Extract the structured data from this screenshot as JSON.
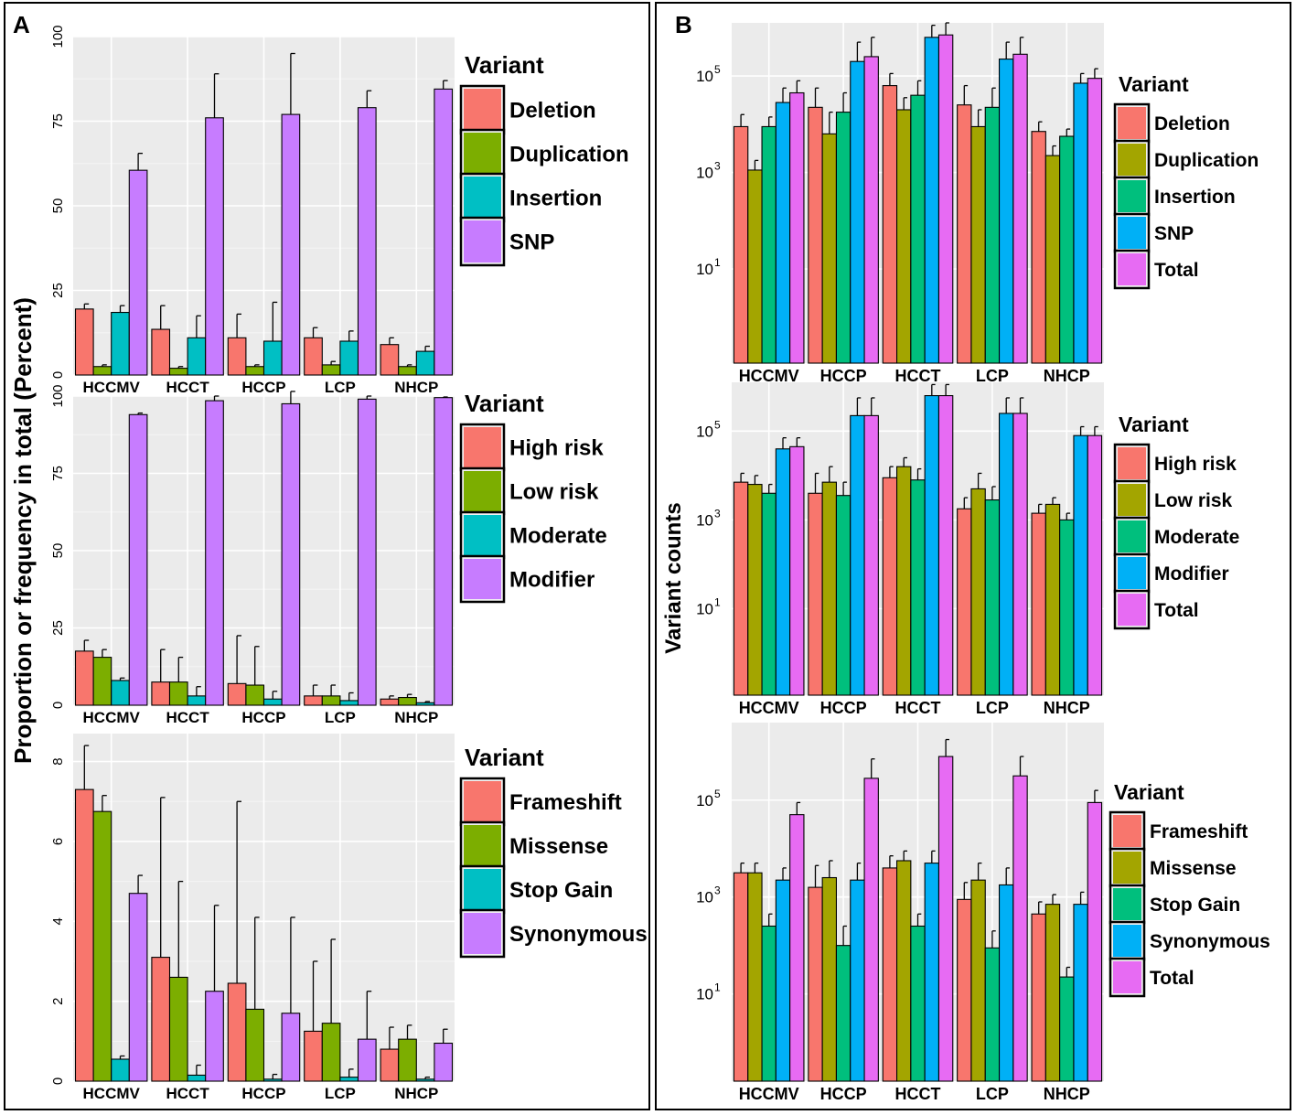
{
  "panels": [
    {
      "label": "A",
      "ylabel": "Proportion or frequency in total (Percent)"
    },
    {
      "label": "B",
      "ylabel": "Variant counts"
    }
  ],
  "chart_data": [
    {
      "id": "A1",
      "panel": "A",
      "type": "bar",
      "scale": "linear",
      "categories": [
        "HCCMV",
        "HCCT",
        "HCCP",
        "LCP",
        "NHCP"
      ],
      "ylim": [
        0,
        100
      ],
      "yticks": [
        0,
        25,
        50,
        75,
        100
      ],
      "legend_title": "Variant",
      "series": [
        {
          "name": "Deletion",
          "color": "#F8766D",
          "values": [
            19.5,
            13.5,
            11,
            11,
            9
          ],
          "errors": [
            1.5,
            7,
            7,
            3,
            2
          ]
        },
        {
          "name": "Duplication",
          "color": "#7CAE00",
          "values": [
            2.5,
            2,
            2.5,
            3,
            2.5
          ],
          "errors": [
            0.5,
            0.5,
            0.5,
            1,
            0.5
          ]
        },
        {
          "name": "Insertion",
          "color": "#00BFC4",
          "values": [
            18.5,
            11,
            10,
            10,
            7
          ],
          "errors": [
            2,
            6.5,
            11.5,
            3,
            1.5
          ]
        },
        {
          "name": "SNP",
          "color": "#C77CFF",
          "values": [
            60.5,
            76,
            77,
            79,
            84.5
          ],
          "errors": [
            5,
            13,
            18,
            5,
            2.5
          ]
        }
      ]
    },
    {
      "id": "A2",
      "panel": "A",
      "type": "bar",
      "scale": "linear",
      "categories": [
        "HCCMV",
        "HCCT",
        "HCCP",
        "LCP",
        "NHCP"
      ],
      "ylim": [
        0,
        100
      ],
      "yticks": [
        0,
        25,
        50,
        75,
        100
      ],
      "legend_title": "Variant",
      "series": [
        {
          "name": "High risk",
          "color": "#F8766D",
          "values": [
            17.5,
            7.5,
            7,
            3,
            2
          ],
          "errors": [
            3.5,
            10.5,
            15.5,
            3.5,
            1
          ]
        },
        {
          "name": "Low risk",
          "color": "#7CAE00",
          "values": [
            15.5,
            7.5,
            6.5,
            3,
            2.5
          ],
          "errors": [
            2.5,
            8,
            12.5,
            3.5,
            1
          ]
        },
        {
          "name": "Moderate",
          "color": "#00BFC4",
          "values": [
            8,
            3,
            2,
            1.5,
            0.8
          ],
          "errors": [
            0.8,
            3,
            2.5,
            2.5,
            0.4
          ]
        },
        {
          "name": "Modifier",
          "color": "#C77CFF",
          "values": [
            94,
            98.5,
            97.5,
            99,
            99.5
          ],
          "errors": [
            0.5,
            1.5,
            4,
            1,
            0.2
          ]
        }
      ]
    },
    {
      "id": "A3",
      "panel": "A",
      "type": "bar",
      "scale": "linear",
      "categories": [
        "HCCMV",
        "HCCT",
        "HCCP",
        "LCP",
        "NHCP"
      ],
      "ylim": [
        0,
        8.7
      ],
      "yticks": [
        0,
        2,
        4,
        6,
        8
      ],
      "legend_title": "Variant",
      "series": [
        {
          "name": "Frameshift",
          "color": "#F8766D",
          "values": [
            7.3,
            3.1,
            2.45,
            1.25,
            0.8
          ],
          "errors": [
            1.1,
            4,
            4.55,
            1.75,
            0.55
          ]
        },
        {
          "name": "Missense",
          "color": "#7CAE00",
          "values": [
            6.75,
            2.6,
            1.8,
            1.45,
            1.05
          ],
          "errors": [
            0.4,
            2.4,
            2.3,
            2.1,
            0.35
          ]
        },
        {
          "name": "Stop Gain",
          "color": "#00BFC4",
          "values": [
            0.55,
            0.15,
            0.05,
            0.1,
            0.05
          ],
          "errors": [
            0.08,
            0.25,
            0.12,
            0.2,
            0.05
          ]
        },
        {
          "name": "Synonymous",
          "color": "#C77CFF",
          "values": [
            4.7,
            2.25,
            1.7,
            1.05,
            0.95
          ],
          "errors": [
            0.45,
            2.15,
            2.4,
            1.2,
            0.35
          ]
        }
      ]
    },
    {
      "id": "B1",
      "panel": "B",
      "type": "bar",
      "scale": "log10",
      "categories": [
        "HCCMV",
        "HCCP",
        "HCCT",
        "LCP",
        "NHCP"
      ],
      "ylim_log10": [
        -0.95,
        6.1
      ],
      "yticks_log10": [
        1,
        3,
        5
      ],
      "ytick_labels": [
        "10",
        "10",
        "10"
      ],
      "ytick_exponents": [
        "1",
        "3",
        "5"
      ],
      "legend_title": "Variant",
      "series": [
        {
          "name": "Deletion",
          "color": "#F8766D",
          "log10_values": [
            3.95,
            4.35,
            4.8,
            4.4,
            3.85
          ],
          "log10_err_high": [
            4.2,
            4.75,
            5.05,
            4.8,
            4.05
          ]
        },
        {
          "name": "Duplication",
          "color": "#A3A500",
          "log10_values": [
            3.05,
            3.8,
            4.3,
            3.95,
            3.35
          ],
          "log10_err_high": [
            3.25,
            4.25,
            4.55,
            4.3,
            3.55
          ]
        },
        {
          "name": "Insertion",
          "color": "#00BF7D",
          "log10_values": [
            3.95,
            4.25,
            4.6,
            4.35,
            3.75
          ],
          "log10_err_high": [
            4.15,
            4.65,
            4.9,
            4.75,
            3.9
          ]
        },
        {
          "name": "SNP",
          "color": "#00B0F6",
          "log10_values": [
            4.45,
            5.3,
            5.8,
            5.35,
            4.85
          ],
          "log10_err_high": [
            4.75,
            5.7,
            6.05,
            5.7,
            5.05
          ]
        },
        {
          "name": "Total",
          "color": "#E76BF3",
          "log10_values": [
            4.65,
            5.4,
            5.85,
            5.45,
            4.95
          ],
          "log10_err_high": [
            4.9,
            5.8,
            6.1,
            5.8,
            5.15
          ]
        }
      ]
    },
    {
      "id": "B2",
      "panel": "B",
      "type": "bar",
      "scale": "log10",
      "categories": [
        "HCCMV",
        "HCCP",
        "HCCT",
        "LCP",
        "NHCP"
      ],
      "ylim_log10": [
        -0.95,
        6.1
      ],
      "yticks_log10": [
        1,
        3,
        5
      ],
      "ytick_labels": [
        "10",
        "10",
        "10"
      ],
      "ytick_exponents": [
        "1",
        "3",
        "5"
      ],
      "legend_title": "Variant",
      "series": [
        {
          "name": "High risk",
          "color": "#F8766D",
          "log10_values": [
            3.85,
            3.6,
            3.95,
            3.25,
            3.15
          ],
          "log10_err_high": [
            4.05,
            4.05,
            4.2,
            3.5,
            3.35
          ]
        },
        {
          "name": "Low risk",
          "color": "#A3A500",
          "log10_values": [
            3.8,
            3.85,
            4.2,
            3.7,
            3.35
          ],
          "log10_err_high": [
            4,
            4.2,
            4.4,
            4.05,
            3.5
          ]
        },
        {
          "name": "Moderate",
          "color": "#00BF7D",
          "log10_values": [
            3.6,
            3.55,
            3.9,
            3.45,
            3
          ],
          "log10_err_high": [
            3.8,
            3.85,
            4.15,
            3.75,
            3.15
          ]
        },
        {
          "name": "Modifier",
          "color": "#00B0F6",
          "log10_values": [
            4.6,
            5.35,
            5.8,
            5.4,
            4.9
          ],
          "log10_err_high": [
            4.85,
            5.75,
            6.05,
            5.75,
            5.1
          ]
        },
        {
          "name": "Total",
          "color": "#E76BF3",
          "log10_values": [
            4.65,
            5.35,
            5.8,
            5.4,
            4.9
          ],
          "log10_err_high": [
            4.85,
            5.75,
            6.05,
            5.75,
            5.1
          ]
        }
      ]
    },
    {
      "id": "B3",
      "panel": "B",
      "type": "bar",
      "scale": "log10",
      "categories": [
        "HCCMV",
        "HCCP",
        "HCCT",
        "LCP",
        "NHCP"
      ],
      "ylim_log10": [
        -0.8,
        6.6
      ],
      "yticks_log10": [
        1,
        3,
        5
      ],
      "ytick_labels": [
        "10",
        "10",
        "10"
      ],
      "ytick_exponents": [
        "1",
        "3",
        "5"
      ],
      "legend_title": "Variant",
      "series": [
        {
          "name": "Frameshift",
          "color": "#F8766D",
          "log10_values": [
            3.5,
            3.2,
            3.6,
            2.95,
            2.65
          ],
          "log10_err_high": [
            3.7,
            3.65,
            3.85,
            3.3,
            2.9
          ]
        },
        {
          "name": "Missense",
          "color": "#A3A500",
          "log10_values": [
            3.5,
            3.4,
            3.75,
            3.35,
            2.85
          ],
          "log10_err_high": [
            3.7,
            3.75,
            3.95,
            3.7,
            3.05
          ]
        },
        {
          "name": "Stop Gain",
          "color": "#00BF7D",
          "log10_values": [
            2.4,
            2,
            2.4,
            1.95,
            1.35
          ],
          "log10_err_high": [
            2.65,
            2.4,
            2.65,
            2.3,
            1.55
          ]
        },
        {
          "name": "Synonymous",
          "color": "#00B0F6",
          "log10_values": [
            3.35,
            3.35,
            3.7,
            3.25,
            2.85
          ],
          "log10_err_high": [
            3.6,
            3.7,
            3.95,
            3.6,
            3.1
          ]
        },
        {
          "name": "Total",
          "color": "#E76BF3",
          "log10_values": [
            4.7,
            5.45,
            5.9,
            5.5,
            4.95
          ],
          "log10_err_high": [
            4.95,
            5.85,
            6.25,
            5.9,
            5.2
          ]
        }
      ]
    }
  ]
}
